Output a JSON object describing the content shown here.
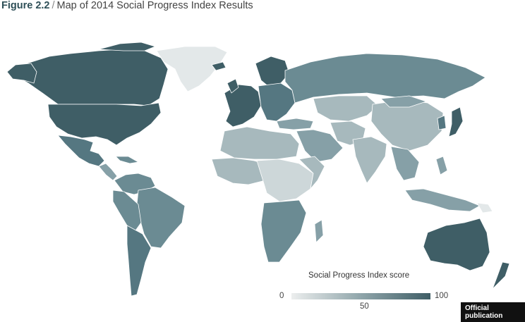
{
  "title": {
    "figure": "Figure 2.2",
    "separator": "/",
    "text": "Map of 2014 Social Progress Index Results"
  },
  "legend": {
    "title": "Social Progress Index score",
    "min": "0",
    "mid": "50",
    "max": "100",
    "gradient": [
      "#eceeee",
      "#8fa5aa",
      "#3f5e66"
    ]
  },
  "badge": "Official publication",
  "colors": {
    "very_high": "#3f5e66",
    "high": "#557781",
    "upper_mid": "#6b8b93",
    "mid": "#86a0a7",
    "lower_mid": "#a7b9bd",
    "low": "#cdd7d9",
    "no_data": "#e3e8e9",
    "border": "#ffffff"
  }
}
